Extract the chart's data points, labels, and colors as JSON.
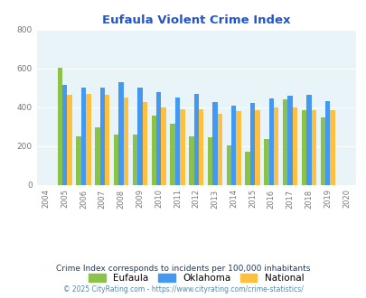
{
  "title": "Eufaula Violent Crime Index",
  "bar_years": [
    2005,
    2006,
    2007,
    2008,
    2009,
    2010,
    2011,
    2012,
    2013,
    2014,
    2015,
    2016,
    2017,
    2018,
    2019
  ],
  "all_years_labels": [
    "2004",
    "2005",
    "2006",
    "2007",
    "2008",
    "2009",
    "2010",
    "2011",
    "2012",
    "2013",
    "2014",
    "2015",
    "2016",
    "2017",
    "2018",
    "2019",
    "2020"
  ],
  "eufaula": [
    605,
    250,
    295,
    258,
    258,
    358,
    315,
    248,
    245,
    202,
    170,
    238,
    440,
    385,
    348
  ],
  "oklahoma": [
    515,
    500,
    500,
    530,
    500,
    478,
    450,
    468,
    428,
    408,
    422,
    448,
    458,
    465,
    430
  ],
  "national": [
    465,
    470,
    465,
    450,
    428,
    400,
    390,
    390,
    368,
    380,
    383,
    400,
    400,
    385,
    383
  ],
  "color_eufaula": "#8BC34A",
  "color_oklahoma": "#4499EE",
  "color_national": "#FFC040",
  "bg_color": "#E8F4F8",
  "title_color": "#2255CC",
  "ylim": [
    0,
    800
  ],
  "yticks": [
    0,
    200,
    400,
    600,
    800
  ],
  "subtitle": "Crime Index corresponds to incidents per 100,000 inhabitants",
  "footer": "© 2025 CityRating.com - https://www.cityrating.com/crime-statistics/",
  "subtitle_color": "#1A3A6A",
  "footer_color": "#5588AA",
  "bar_width": 0.26
}
